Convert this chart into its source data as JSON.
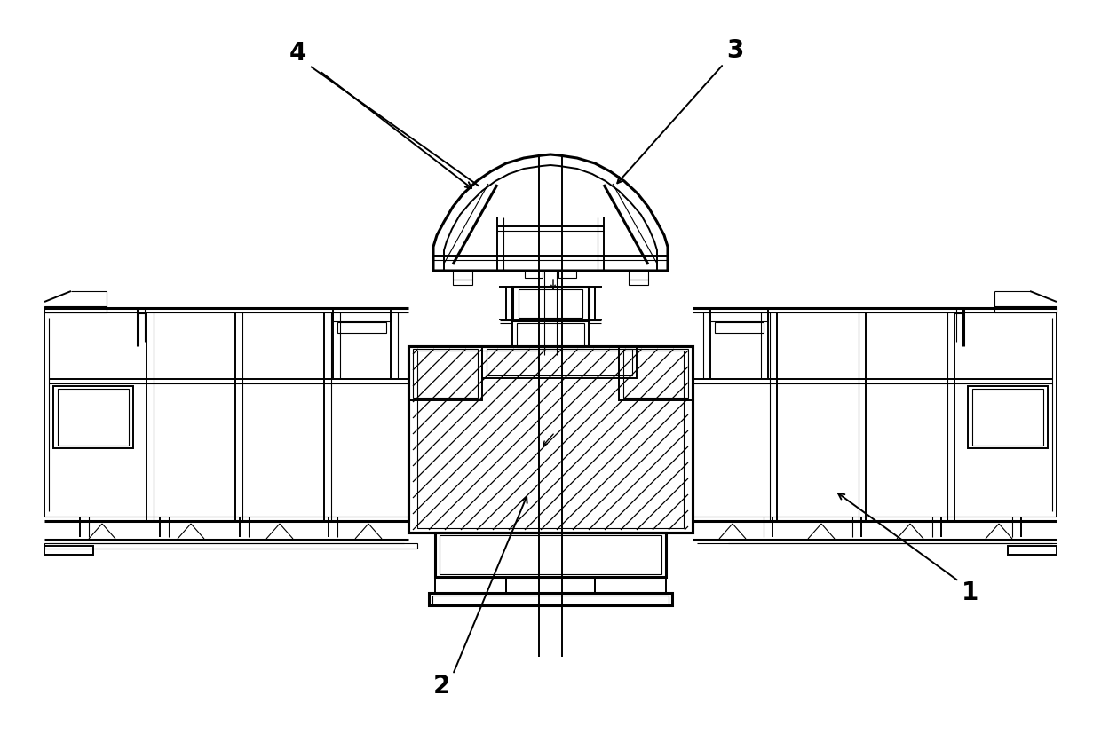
{
  "bg_color": "#ffffff",
  "line_color": "#000000",
  "lw_heavy": 2.2,
  "lw_med": 1.4,
  "lw_thin": 0.8,
  "label_fontsize": 20,
  "figsize": [
    12.4,
    8.36
  ],
  "dpi": 100
}
